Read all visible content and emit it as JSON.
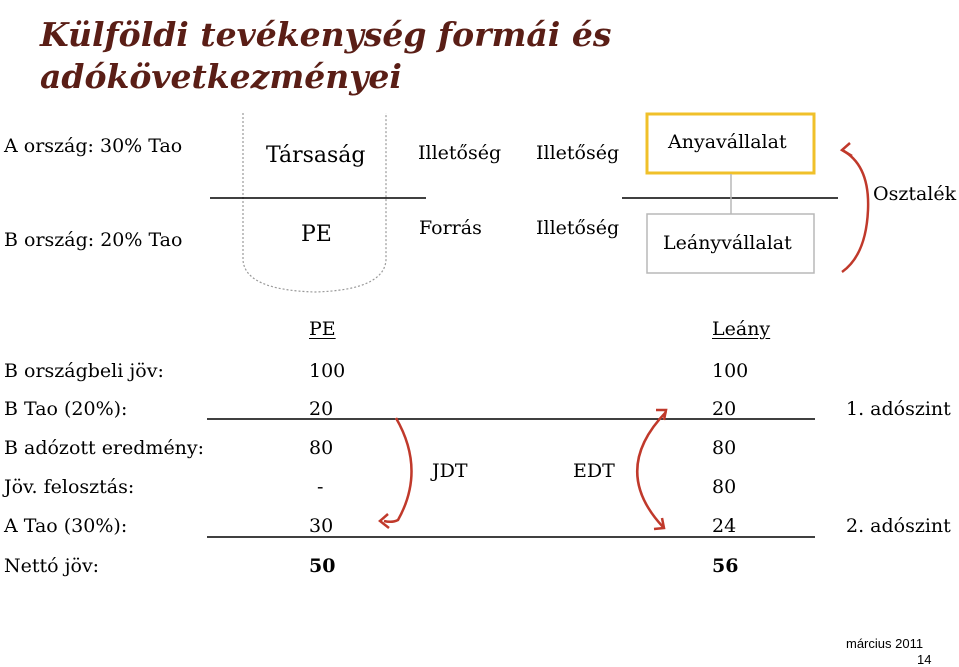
{
  "title": {
    "line1": "Külföldi tevékenység formái és",
    "line2": "adókövetkezményei"
  },
  "top_diagram": {
    "row_a": "A ország: 30% Tao",
    "row_b": "B ország: 20% Tao",
    "col_tarsasag": "Társaság",
    "col_pe": "PE",
    "illetoseg1": "Illetőség",
    "forras": "Forrás",
    "illetoseg2": "Illetőség",
    "illetoseg3": "Illetőség",
    "anyavallalat": "Anyavállalat",
    "leanyvallalat": "Leányvállalat",
    "osztalek": "Osztalék",
    "colors": {
      "box_gold": "#f0c02a",
      "box_grey": "#b8b8b8",
      "arc_red": "#c0392b",
      "dotted_grey": "#999999"
    }
  },
  "table": {
    "head_pe": "PE",
    "head_leany": "Leány",
    "rows": [
      {
        "label": "B országbeli jöv:",
        "pe": "100",
        "leany": "100",
        "level": ""
      },
      {
        "label": "B Tao (20%):",
        "pe": "20",
        "leany": "20",
        "level": "1. adószint"
      },
      {
        "label": "B adózott eredmény:",
        "pe": "80",
        "leany": "80",
        "level": ""
      },
      {
        "label": "Jöv. felosztás:",
        "pe": "-",
        "leany": "80",
        "level": ""
      },
      {
        "label": "A Tao (30%):",
        "pe": "30",
        "leany": "24",
        "level": "2. adószint"
      },
      {
        "label": "Nettó jöv:",
        "pe": "50",
        "leany": "56",
        "level": ""
      }
    ],
    "jdt": "JDT",
    "edt": "EDT"
  },
  "footer": {
    "date": "március 2011",
    "page": "14"
  }
}
